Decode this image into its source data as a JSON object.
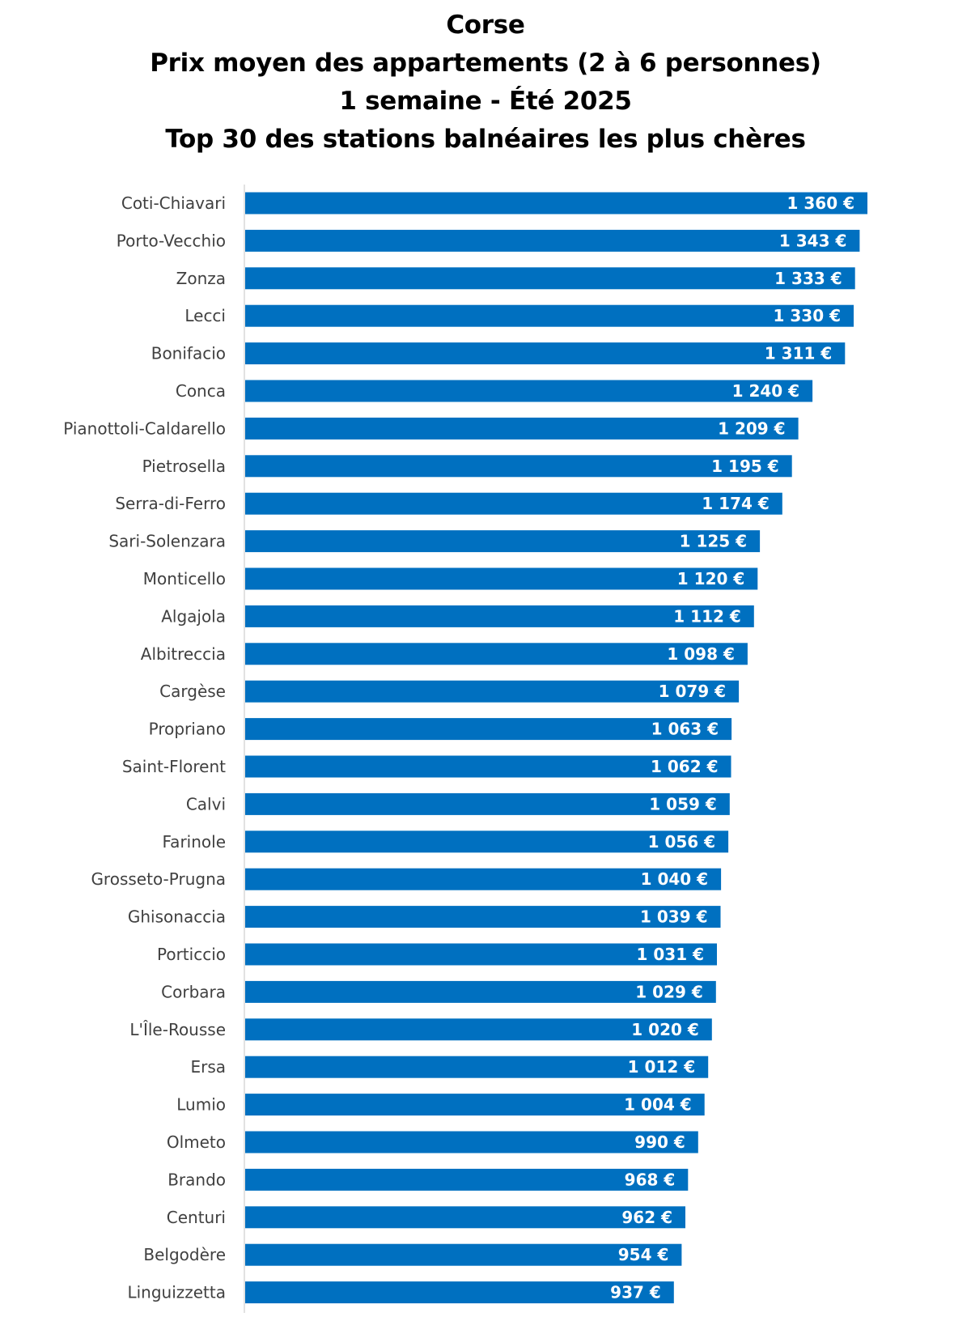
{
  "chart_data": {
    "type": "bar",
    "orientation": "horizontal",
    "title_lines": [
      "Corse",
      "Prix moyen des appartements (2 à 6 personnes)",
      "1 semaine - Été 2025",
      "Top 30 des stations balnéaires les plus chères"
    ],
    "categories": [
      "Coti-Chiavari",
      "Porto-Vecchio",
      "Zonza",
      "Lecci",
      "Bonifacio",
      "Conca",
      "Pianottoli-Caldarello",
      "Pietrosella",
      "Serra-di-Ferro",
      "Sari-Solenzara",
      "Monticello",
      "Algajola",
      "Albitreccia",
      "Cargèse",
      "Propriano",
      "Saint-Florent",
      "Calvi",
      "Farinole",
      "Grosseto-Prugna",
      "Ghisonaccia",
      "Porticcio",
      "Corbara",
      "L'Île-Rousse",
      "Ersa",
      "Lumio",
      "Olmeto",
      "Brando",
      "Centuri",
      "Belgodère",
      "Linguizzetta"
    ],
    "values": [
      1360,
      1343,
      1333,
      1330,
      1311,
      1240,
      1209,
      1195,
      1174,
      1125,
      1120,
      1112,
      1098,
      1079,
      1063,
      1062,
      1059,
      1056,
      1040,
      1039,
      1031,
      1029,
      1020,
      1012,
      1004,
      990,
      968,
      962,
      954,
      937
    ],
    "data_labels": [
      "1 360 €",
      "1 343 €",
      "1 333 €",
      "1 330 €",
      "1 311 €",
      "1 240 €",
      "1 209 €",
      "1 195 €",
      "1 174 €",
      "1 125 €",
      "1 120 €",
      "1 112 €",
      "1 098 €",
      "1 079 €",
      "1 063 €",
      "1 062 €",
      "1 059 €",
      "1 056 €",
      "1 040 €",
      "1 039 €",
      "1 031 €",
      "1 029 €",
      "1 020 €",
      "1 012 €",
      "1 004 €",
      "990 €",
      "968 €",
      "962 €",
      "954 €",
      "937 €"
    ],
    "unit": "€",
    "xlim": [
      0,
      1360
    ],
    "grid": false,
    "legend": "none",
    "colors": {
      "bar": "#0070c0",
      "data_label": "#ffffff",
      "category_label": "#404040",
      "axis_line": "#d9d9d9",
      "title": "#000000"
    }
  }
}
